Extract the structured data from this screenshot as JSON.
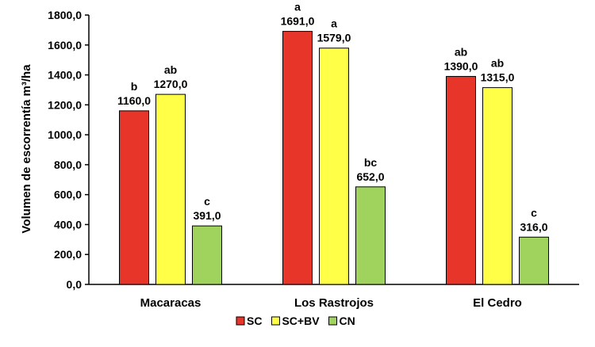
{
  "chart_data": {
    "type": "bar",
    "title": "",
    "xlabel": "",
    "ylabel": "Volumen de escorrentía m³/ha",
    "ylim": [
      0,
      1800
    ],
    "yticks": [
      "0,0",
      "200,0",
      "400,0",
      "600,0",
      "800,0",
      "1000,0",
      "1200,0",
      "1400,0",
      "1600,0",
      "1800,0"
    ],
    "grid": false,
    "legend_position": "bottom",
    "categories": [
      "Macaracas",
      "Los Rastrojos",
      "El Cedro"
    ],
    "series": [
      {
        "name": "SC",
        "color": "#e8352a",
        "values": [
          1160,
          1691,
          1390
        ],
        "labels": [
          "1160,0",
          "1691,0",
          "1390,0"
        ],
        "letters": [
          "b",
          "a",
          "ab"
        ]
      },
      {
        "name": "SC+BV",
        "color": "#ffff47",
        "values": [
          1270,
          1579,
          1315
        ],
        "labels": [
          "1270,0",
          "1579,0",
          "1315,0"
        ],
        "letters": [
          "ab",
          "a",
          "ab"
        ]
      },
      {
        "name": "CN",
        "color": "#9fd35e",
        "values": [
          391,
          652,
          316
        ],
        "labels": [
          "391,0",
          "652,0",
          "316,0"
        ],
        "letters": [
          "c",
          "bc",
          "c"
        ]
      }
    ]
  }
}
